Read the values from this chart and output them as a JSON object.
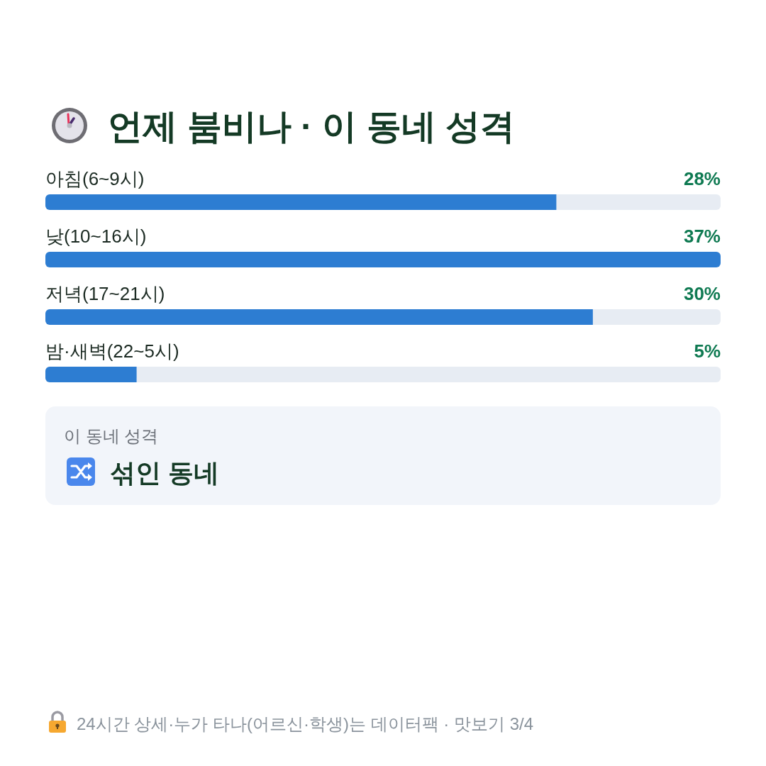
{
  "chart_data": {
    "type": "bar",
    "orientation": "horizontal",
    "title": "언제 붐비나 · 이 동네 성격",
    "categories": [
      "아침(6~9시)",
      "낮(10~16시)",
      "저녁(17~21시)",
      "밤·새벽(22~5시)"
    ],
    "values": [
      28,
      37,
      30,
      5
    ],
    "value_labels": [
      "28%",
      "37%",
      "30%",
      "5%"
    ],
    "color": "#2d7dd2",
    "annotations": [
      "이 동네 성격",
      "섞인 동네",
      "24시간 상세·누가 타나(어르신·학생)는 데이터팩 · 맛보기 3/4"
    ]
  }
}
